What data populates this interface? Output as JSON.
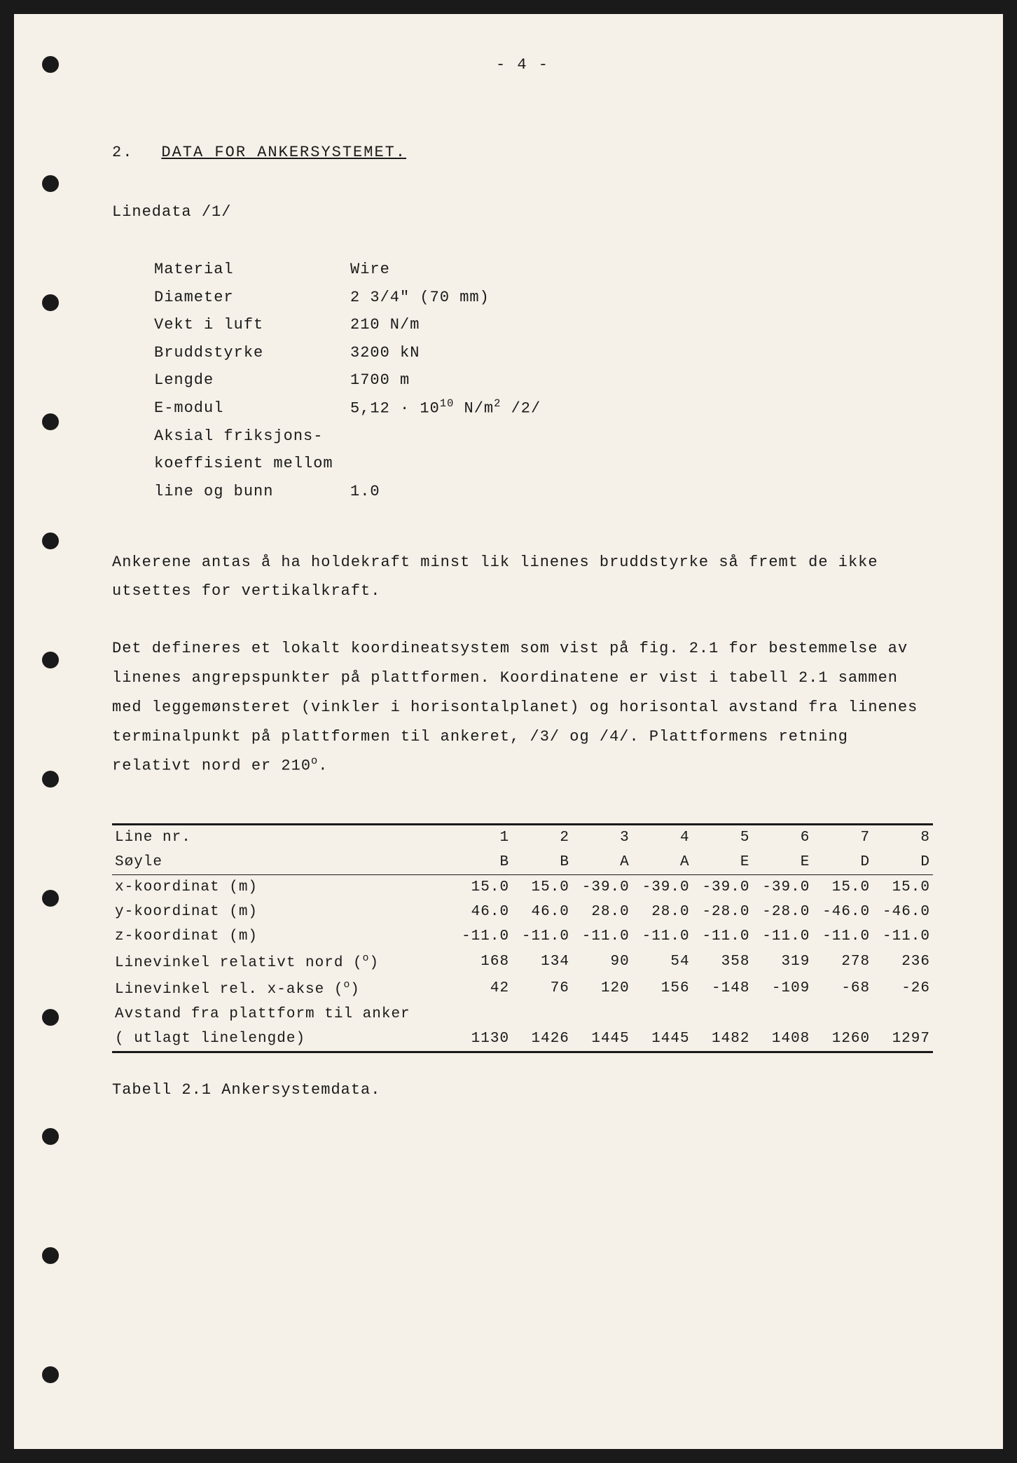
{
  "page_number": "- 4 -",
  "section": {
    "number": "2.",
    "title": "DATA FOR ANKERSYSTEMET."
  },
  "subheading": "Linedata /1/",
  "specs": [
    {
      "label": "Material",
      "value": "Wire"
    },
    {
      "label": "Diameter",
      "value": "2 3/4\"   (70 mm)"
    },
    {
      "label": "Vekt i luft",
      "value": "210 N/m"
    },
    {
      "label": "Bruddstyrke",
      "value": "3200 kN"
    },
    {
      "label": "Lengde",
      "value": "1700 m"
    },
    {
      "label": "E-modul",
      "value_html": "5,12 · 10<sup>10</sup>  N/m<sup>2</sup>    /2/"
    },
    {
      "label": "Aksial friksjons-",
      "value": ""
    },
    {
      "label": "koeffisient mellom",
      "value": ""
    },
    {
      "label": "line og bunn",
      "value": "1.0"
    }
  ],
  "paragraph1": "Ankerene antas å ha holdekraft minst lik linenes bruddstyrke så fremt de ikke utsettes for vertikalkraft.",
  "paragraph2_html": "Det defineres et lokalt koordineatsystem som vist på fig. 2.1 for bestemmelse av linenes angrepspunkter på plattformen. Koordinatene er vist i tabell 2.1 sammen med leggemønsteret (vinkler i horisontalplanet) og horisontal avstand fra linenes terminalpunkt på plattformen til ankeret, /3/ og /4/. Plattformens retning relativt nord er 210<sup>o</sup>.",
  "table": {
    "header_rows": [
      {
        "label": "Line nr.",
        "values": [
          "1",
          "2",
          "3",
          "4",
          "5",
          "6",
          "7",
          "8"
        ]
      },
      {
        "label": "Søyle",
        "values": [
          "B",
          "B",
          "A",
          "A",
          "E",
          "E",
          "D",
          "D"
        ]
      }
    ],
    "data_rows": [
      {
        "label": "x-koordinat  (m)",
        "values": [
          "15.0",
          "15.0",
          "-39.0",
          "-39.0",
          "-39.0",
          "-39.0",
          "15.0",
          "15.0"
        ]
      },
      {
        "label": "y-koordinat  (m)",
        "values": [
          "46.0",
          "46.0",
          "28.0",
          "28.0",
          "-28.0",
          "-28.0",
          "-46.0",
          "-46.0"
        ]
      },
      {
        "label": "z-koordinat  (m)",
        "values": [
          "-11.0",
          "-11.0",
          "-11.0",
          "-11.0",
          "-11.0",
          "-11.0",
          "-11.0",
          "-11.0"
        ]
      },
      {
        "label_html": "Linevinkel relativt nord (<sup>o</sup>)",
        "values": [
          "168",
          "134",
          "90",
          "54",
          "358",
          "319",
          "278",
          "236"
        ]
      },
      {
        "label_html": "Linevinkel rel. x-akse   (<sup>o</sup>)",
        "values": [
          "42",
          "76",
          "120",
          "156",
          "-148",
          "-109",
          "-68",
          "-26"
        ]
      },
      {
        "label": "Avstand fra plattform til anker",
        "values": [
          "",
          "",
          "",
          "",
          "",
          "",
          "",
          ""
        ]
      },
      {
        "label": "(   utlagt linelengde)",
        "values": [
          "1130",
          "1426",
          "1445",
          "1445",
          "1482",
          "1408",
          "1260",
          "1297"
        ]
      }
    ]
  },
  "table_caption": "Tabell 2.1   Ankersystemdata.",
  "hole_positions": [
    60,
    230,
    400,
    570,
    740,
    910,
    1080,
    1250,
    1420,
    1590,
    1760,
    1930
  ],
  "colors": {
    "page_bg": "#f5f0e8",
    "outer_bg": "#1a1a1a",
    "text": "#1a1a1a"
  },
  "typography": {
    "font_family": "Courier New, Courier, monospace",
    "body_fontsize": 22,
    "table_fontsize": 21,
    "line_height": 1.9
  }
}
